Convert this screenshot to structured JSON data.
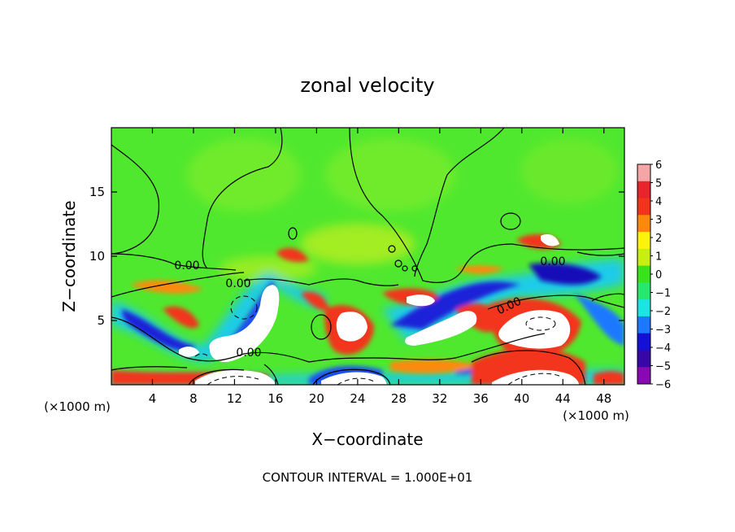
{
  "chart_data": {
    "type": "heatmap",
    "title": "zonal velocity",
    "xlabel": "X−coordinate",
    "ylabel": "Z−coordinate",
    "x_unit_left": "(×1000 m)",
    "x_unit_right": "(×1000 m)",
    "xlim": [
      0,
      50
    ],
    "ylim": [
      0,
      20
    ],
    "x_ticks": [
      4,
      8,
      12,
      16,
      20,
      24,
      28,
      32,
      36,
      40,
      44,
      48
    ],
    "y_ticks": [
      5,
      10,
      15
    ],
    "colorbar": {
      "range": [
        -6,
        6
      ],
      "ticks": [
        6,
        5,
        4,
        3,
        2,
        1,
        0,
        -1,
        -2,
        -3,
        -4,
        -5,
        -6
      ],
      "tick_labels": [
        "6",
        "5",
        "4",
        "3",
        "2",
        "1",
        "0",
        "−1",
        "−2",
        "−3",
        "−4",
        "−5",
        "−6"
      ],
      "colors": [
        "#f4a6a6",
        "#e8242c",
        "#f2341c",
        "#fb8a0c",
        "#fef30c",
        "#c8ee12",
        "#38e31a",
        "#26e86e",
        "#1ce4e2",
        "#1e78ff",
        "#1410d6",
        "#3606a6",
        "#8a08b2"
      ]
    },
    "contour_labels": [
      "0.00",
      "0.00",
      "0.00",
      "0.00",
      "0.00"
    ],
    "background_color": "#50e82e",
    "footer": "CONTOUR INTERVAL = 1.000E+01"
  }
}
